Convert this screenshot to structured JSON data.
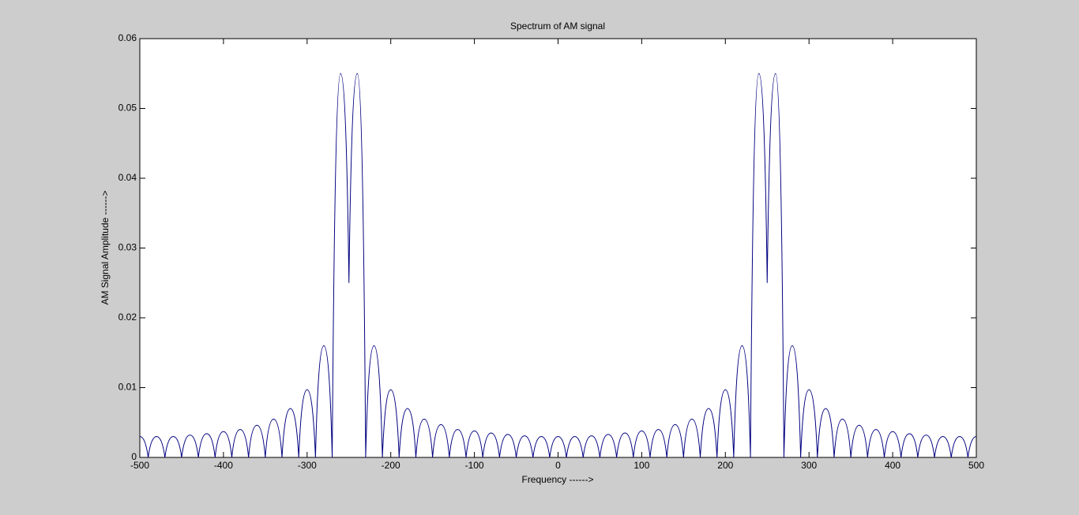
{
  "chart_data": {
    "type": "line",
    "title": "Spectrum of AM signal",
    "x_label": "Frequency  ------>",
    "y_label": "AM Signal Amplitude  ------>",
    "x": [
      -500,
      -490,
      -480,
      -470,
      -460,
      -450,
      -440,
      -430,
      -420,
      -410,
      -400,
      -390,
      -380,
      -370,
      -360,
      -350,
      -340,
      -330,
      -320,
      -310,
      -300,
      -290,
      -280,
      -270,
      -260,
      -250,
      -240,
      -230,
      -220,
      -210,
      -200,
      -190,
      -180,
      -170,
      -160,
      -150,
      -140,
      -130,
      -120,
      -110,
      -100,
      -90,
      -80,
      -70,
      -60,
      -50,
      -40,
      -30,
      -20,
      -10,
      0,
      10,
      20,
      30,
      40,
      50,
      60,
      70,
      80,
      90,
      100,
      110,
      120,
      130,
      140,
      150,
      160,
      170,
      180,
      190,
      200,
      210,
      220,
      230,
      240,
      250,
      260,
      270,
      280,
      290,
      300,
      310,
      320,
      330,
      340,
      350,
      360,
      370,
      380,
      390,
      400,
      410,
      420,
      430,
      440,
      450,
      460,
      470,
      480,
      490,
      500
    ],
    "series": [
      {
        "color": "#000080",
        "values": [
          0.003,
          0,
          0.003,
          0,
          0.003,
          0,
          0.0032,
          0,
          0.0034,
          0,
          0.0037,
          0,
          0.004,
          0,
          0.0046,
          0,
          0.0055,
          0,
          0.007,
          0,
          0.0097,
          0,
          0.016,
          0,
          0.055,
          0.025,
          0.055,
          0,
          0.016,
          0,
          0.0097,
          0,
          0.007,
          0,
          0.0055,
          0,
          0.0047,
          0,
          0.004,
          0,
          0.0038,
          0,
          0.0035,
          0,
          0.0033,
          0,
          0.0031,
          0,
          0.003,
          0,
          0.003,
          0,
          0.003,
          0,
          0.0031,
          0,
          0.0033,
          0,
          0.0035,
          0,
          0.0038,
          0,
          0.004,
          0,
          0.0047,
          0,
          0.0055,
          0,
          0.007,
          0,
          0.0097,
          0,
          0.016,
          0,
          0.055,
          0.025,
          0.055,
          0,
          0.016,
          0,
          0.0097,
          0,
          0.007,
          0,
          0.0055,
          0,
          0.0046,
          0,
          0.004,
          0,
          0.0037,
          0,
          0.0034,
          0,
          0.0032,
          0,
          0.003,
          0,
          0.003,
          0,
          0.003
        ]
      }
    ],
    "xlim": [
      -500,
      500
    ],
    "xticks": [
      -500,
      -400,
      -300,
      -200,
      -100,
      0,
      100,
      200,
      300,
      400,
      500
    ],
    "ylim": [
      0,
      0.06
    ],
    "yticks": [
      0,
      0.01,
      0.02,
      0.03,
      0.04,
      0.05,
      0.06
    ]
  }
}
